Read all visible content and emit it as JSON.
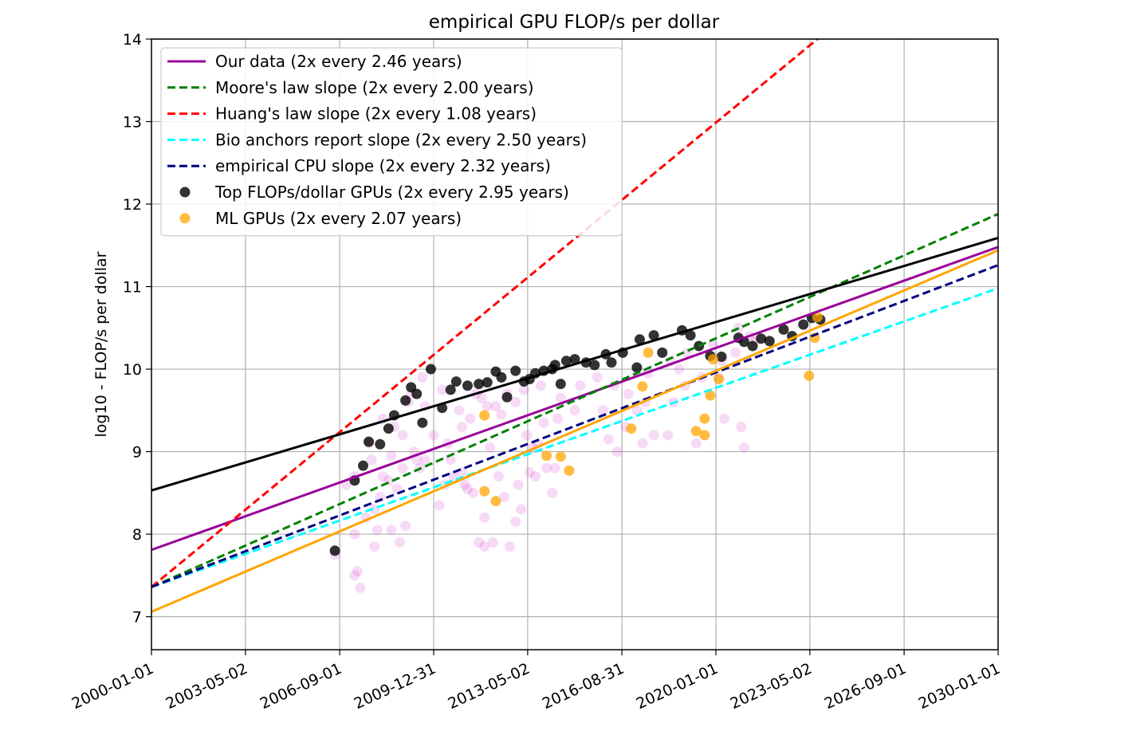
{
  "chart_data": {
    "type": "scatter",
    "title": "empirical GPU FLOP/s per dollar",
    "xlabel": "",
    "ylabel": "log10 - FLOP/s per dollar",
    "xlim": [
      2000.0,
      2030.0
    ],
    "ylim": [
      6.6,
      14.0
    ],
    "yticks": [
      7,
      8,
      9,
      10,
      11,
      12,
      13,
      14
    ],
    "xticks": [
      {
        "value": 2000.0,
        "label": "2000-01-01"
      },
      {
        "value": 2003.33,
        "label": "2003-05-02"
      },
      {
        "value": 2006.67,
        "label": "2006-09-01"
      },
      {
        "value": 2010.0,
        "label": "2009-12-31"
      },
      {
        "value": 2013.33,
        "label": "2013-05-02"
      },
      {
        "value": 2016.67,
        "label": "2016-08-31"
      },
      {
        "value": 2020.0,
        "label": "2020-01-01"
      },
      {
        "value": 2023.33,
        "label": "2023-05-02"
      },
      {
        "value": 2026.67,
        "label": "2026-09-01"
      },
      {
        "value": 2030.0,
        "label": "2030-01-01"
      }
    ],
    "grid": true,
    "legend_position": "top-left",
    "lines": [
      {
        "name": "Our data (2x every 2.46 years)",
        "color": "#990099",
        "style": "solid",
        "x": [
          2000,
          2030
        ],
        "y": [
          7.81,
          11.48
        ],
        "legend": true
      },
      {
        "name": "Moore's law slope (2x every 2.00 years)",
        "color": "#008000",
        "style": "dashed",
        "x": [
          2000,
          2030
        ],
        "y": [
          7.36,
          11.88
        ],
        "legend": true
      },
      {
        "name": "Huang's law slope (2x every 1.08 years)",
        "color": "#ff0000",
        "style": "dashed",
        "x": [
          2000,
          2023.6
        ],
        "y": [
          7.36,
          14.0
        ],
        "legend": true
      },
      {
        "name": "Bio anchors report slope (2x every 2.50 years)",
        "color": "#00ffff",
        "style": "dashed",
        "x": [
          2000,
          2030
        ],
        "y": [
          7.36,
          10.98
        ],
        "legend": true
      },
      {
        "name": "empirical CPU slope (2x every 2.32 years)",
        "color": "#000080",
        "style": "dashed",
        "x": [
          2000,
          2030
        ],
        "y": [
          7.36,
          11.26
        ],
        "legend": true
      },
      {
        "name": "Top FLOPs/dollar GPUs trend",
        "color": "#000000",
        "style": "solid",
        "x": [
          2000,
          2030
        ],
        "y": [
          8.53,
          11.59
        ],
        "legend": false
      },
      {
        "name": "ML GPUs trend",
        "color": "#ffa500",
        "style": "solid",
        "x": [
          2000,
          2030
        ],
        "y": [
          7.06,
          11.44
        ],
        "legend": false
      }
    ],
    "series": [
      {
        "name": "Our data (all GPUs)",
        "color": "#cc33cc",
        "opacity": 0.18,
        "legend": false,
        "points": [
          [
            2006.5,
            7.75
          ],
          [
            2007.2,
            7.5
          ],
          [
            2007.3,
            7.55
          ],
          [
            2007.4,
            7.35
          ],
          [
            2007.2,
            8.0
          ],
          [
            2007.6,
            8.2
          ],
          [
            2007.9,
            8.3
          ],
          [
            2008.0,
            8.05
          ],
          [
            2007.9,
            7.85
          ],
          [
            2008.5,
            8.05
          ],
          [
            2008.8,
            7.9
          ],
          [
            2009.0,
            8.1
          ],
          [
            2008.7,
            8.55
          ],
          [
            2008.2,
            8.7
          ],
          [
            2007.8,
            8.9
          ],
          [
            2008.5,
            8.95
          ],
          [
            2008.9,
            8.8
          ],
          [
            2009.3,
            9.0
          ],
          [
            2009.7,
            8.9
          ],
          [
            2010.2,
            8.35
          ],
          [
            2010.4,
            8.6
          ],
          [
            2010.7,
            8.7
          ],
          [
            2011.0,
            8.75
          ],
          [
            2011.2,
            8.55
          ],
          [
            2011.4,
            8.5
          ],
          [
            2011.6,
            7.9
          ],
          [
            2011.8,
            7.85
          ],
          [
            2012.1,
            7.9
          ],
          [
            2011.8,
            8.2
          ],
          [
            2012.5,
            8.45
          ],
          [
            2012.7,
            7.85
          ],
          [
            2012.9,
            8.15
          ],
          [
            2013.0,
            8.6
          ],
          [
            2013.1,
            8.3
          ],
          [
            2013.4,
            8.75
          ],
          [
            2013.6,
            8.7
          ],
          [
            2014.0,
            8.8
          ],
          [
            2014.3,
            8.8
          ],
          [
            2014.2,
            8.5
          ],
          [
            2013.5,
            9.05
          ],
          [
            2013.9,
            9.35
          ],
          [
            2014.4,
            9.4
          ],
          [
            2012.9,
            9.6
          ],
          [
            2012.4,
            9.45
          ],
          [
            2011.9,
            9.55
          ],
          [
            2011.5,
            9.7
          ],
          [
            2011.0,
            9.3
          ],
          [
            2010.5,
            9.1
          ],
          [
            2010.0,
            9.2
          ],
          [
            2009.7,
            9.55
          ],
          [
            2009.2,
            9.7
          ],
          [
            2008.9,
            9.2
          ],
          [
            2008.6,
            9.3
          ],
          [
            2016.0,
            9.5
          ],
          [
            2016.2,
            9.15
          ],
          [
            2016.5,
            9.0
          ],
          [
            2016.8,
            9.3
          ],
          [
            2017.2,
            9.5
          ],
          [
            2017.4,
            9.1
          ],
          [
            2017.8,
            9.2
          ],
          [
            2018.3,
            9.2
          ],
          [
            2018.5,
            9.6
          ],
          [
            2018.9,
            9.8
          ],
          [
            2019.3,
            9.1
          ],
          [
            2019.5,
            9.9
          ],
          [
            2020.1,
            9.9
          ],
          [
            2020.3,
            9.4
          ],
          [
            2020.9,
            9.3
          ],
          [
            2021.0,
            9.05
          ],
          [
            2021.2,
            10.4
          ],
          [
            2020.7,
            10.2
          ],
          [
            2020.2,
            10.1
          ],
          [
            2019.9,
            10.3
          ],
          [
            2018.7,
            10.0
          ],
          [
            2017.5,
            9.6
          ],
          [
            2016.9,
            9.7
          ],
          [
            2015.8,
            9.9
          ],
          [
            2015.2,
            9.8
          ],
          [
            2014.5,
            9.65
          ],
          [
            2013.8,
            9.8
          ],
          [
            2013.2,
            9.75
          ],
          [
            2012.6,
            9.7
          ],
          [
            2012.2,
            9.55
          ],
          [
            2011.7,
            9.65
          ],
          [
            2011.3,
            9.4
          ],
          [
            2010.9,
            9.5
          ],
          [
            2010.3,
            9.75
          ],
          [
            2009.6,
            9.9
          ],
          [
            2009.1,
            9.6
          ],
          [
            2008.2,
            9.4
          ],
          [
            2007.7,
            9.1
          ],
          [
            2007.2,
            8.7
          ],
          [
            2006.9,
            8.6
          ],
          [
            2009.5,
            8.8
          ],
          [
            2010.6,
            8.9
          ],
          [
            2011.1,
            8.6
          ],
          [
            2012.3,
            8.7
          ],
          [
            2013.7,
            9.1
          ],
          [
            2015.0,
            9.5
          ],
          [
            2016.4,
            9.8
          ],
          [
            2017.6,
            9.95
          ],
          [
            2018.4,
            10.1
          ],
          [
            2019.0,
            10.2
          ],
          [
            2020.8,
            10.5
          ],
          [
            2021.4,
            10.35
          ],
          [
            2008.1,
            8.45
          ],
          [
            2008.4,
            8.65
          ],
          [
            2009.4,
            8.9
          ],
          [
            2012.0,
            9.05
          ],
          [
            2013.3,
            9.2
          ]
        ]
      },
      {
        "name": "Top FLOPs/dollar GPUs (2x every 2.95 years)",
        "color": "#000000",
        "opacity": 0.8,
        "legend": true,
        "points": [
          [
            2006.5,
            7.8
          ],
          [
            2007.2,
            8.65
          ],
          [
            2007.5,
            8.83
          ],
          [
            2007.7,
            9.12
          ],
          [
            2008.1,
            9.09
          ],
          [
            2008.4,
            9.28
          ],
          [
            2008.6,
            9.44
          ],
          [
            2009.0,
            9.62
          ],
          [
            2009.2,
            9.78
          ],
          [
            2009.4,
            9.7
          ],
          [
            2009.6,
            9.35
          ],
          [
            2009.9,
            10.0
          ],
          [
            2010.3,
            9.53
          ],
          [
            2010.6,
            9.75
          ],
          [
            2010.8,
            9.85
          ],
          [
            2011.2,
            9.8
          ],
          [
            2011.6,
            9.82
          ],
          [
            2011.9,
            9.84
          ],
          [
            2012.2,
            9.97
          ],
          [
            2012.4,
            9.9
          ],
          [
            2012.6,
            9.66
          ],
          [
            2012.9,
            9.98
          ],
          [
            2013.2,
            9.85
          ],
          [
            2013.4,
            9.88
          ],
          [
            2013.6,
            9.95
          ],
          [
            2013.9,
            9.98
          ],
          [
            2014.2,
            10.0
          ],
          [
            2014.3,
            10.05
          ],
          [
            2014.5,
            9.82
          ],
          [
            2014.7,
            10.1
          ],
          [
            2015.0,
            10.12
          ],
          [
            2015.4,
            10.08
          ],
          [
            2015.7,
            10.05
          ],
          [
            2016.1,
            10.18
          ],
          [
            2016.3,
            10.08
          ],
          [
            2016.7,
            10.2
          ],
          [
            2017.2,
            10.02
          ],
          [
            2017.3,
            10.36
          ],
          [
            2017.8,
            10.41
          ],
          [
            2018.1,
            10.2
          ],
          [
            2018.8,
            10.47
          ],
          [
            2019.1,
            10.41
          ],
          [
            2019.4,
            10.28
          ],
          [
            2019.8,
            10.16
          ],
          [
            2020.2,
            10.15
          ],
          [
            2020.8,
            10.38
          ],
          [
            2021.0,
            10.33
          ],
          [
            2021.3,
            10.28
          ],
          [
            2021.6,
            10.37
          ],
          [
            2021.9,
            10.34
          ],
          [
            2022.4,
            10.48
          ],
          [
            2022.7,
            10.4
          ],
          [
            2023.1,
            10.54
          ],
          [
            2023.4,
            10.62
          ],
          [
            2023.7,
            10.6
          ]
        ]
      },
      {
        "name": "ML GPUs (2x every 2.07 years)",
        "color": "#ffa500",
        "opacity": 0.75,
        "legend": true,
        "points": [
          [
            2011.8,
            9.44
          ],
          [
            2011.8,
            8.52
          ],
          [
            2012.2,
            8.4
          ],
          [
            2014.0,
            8.95
          ],
          [
            2014.5,
            8.94
          ],
          [
            2014.8,
            8.77
          ],
          [
            2017.0,
            9.28
          ],
          [
            2017.4,
            9.79
          ],
          [
            2017.6,
            10.2
          ],
          [
            2019.3,
            9.25
          ],
          [
            2019.6,
            9.4
          ],
          [
            2019.6,
            9.2
          ],
          [
            2019.8,
            9.68
          ],
          [
            2019.9,
            10.12
          ],
          [
            2020.1,
            9.88
          ],
          [
            2023.3,
            9.92
          ],
          [
            2023.5,
            10.38
          ],
          [
            2023.6,
            10.63
          ]
        ]
      }
    ]
  }
}
